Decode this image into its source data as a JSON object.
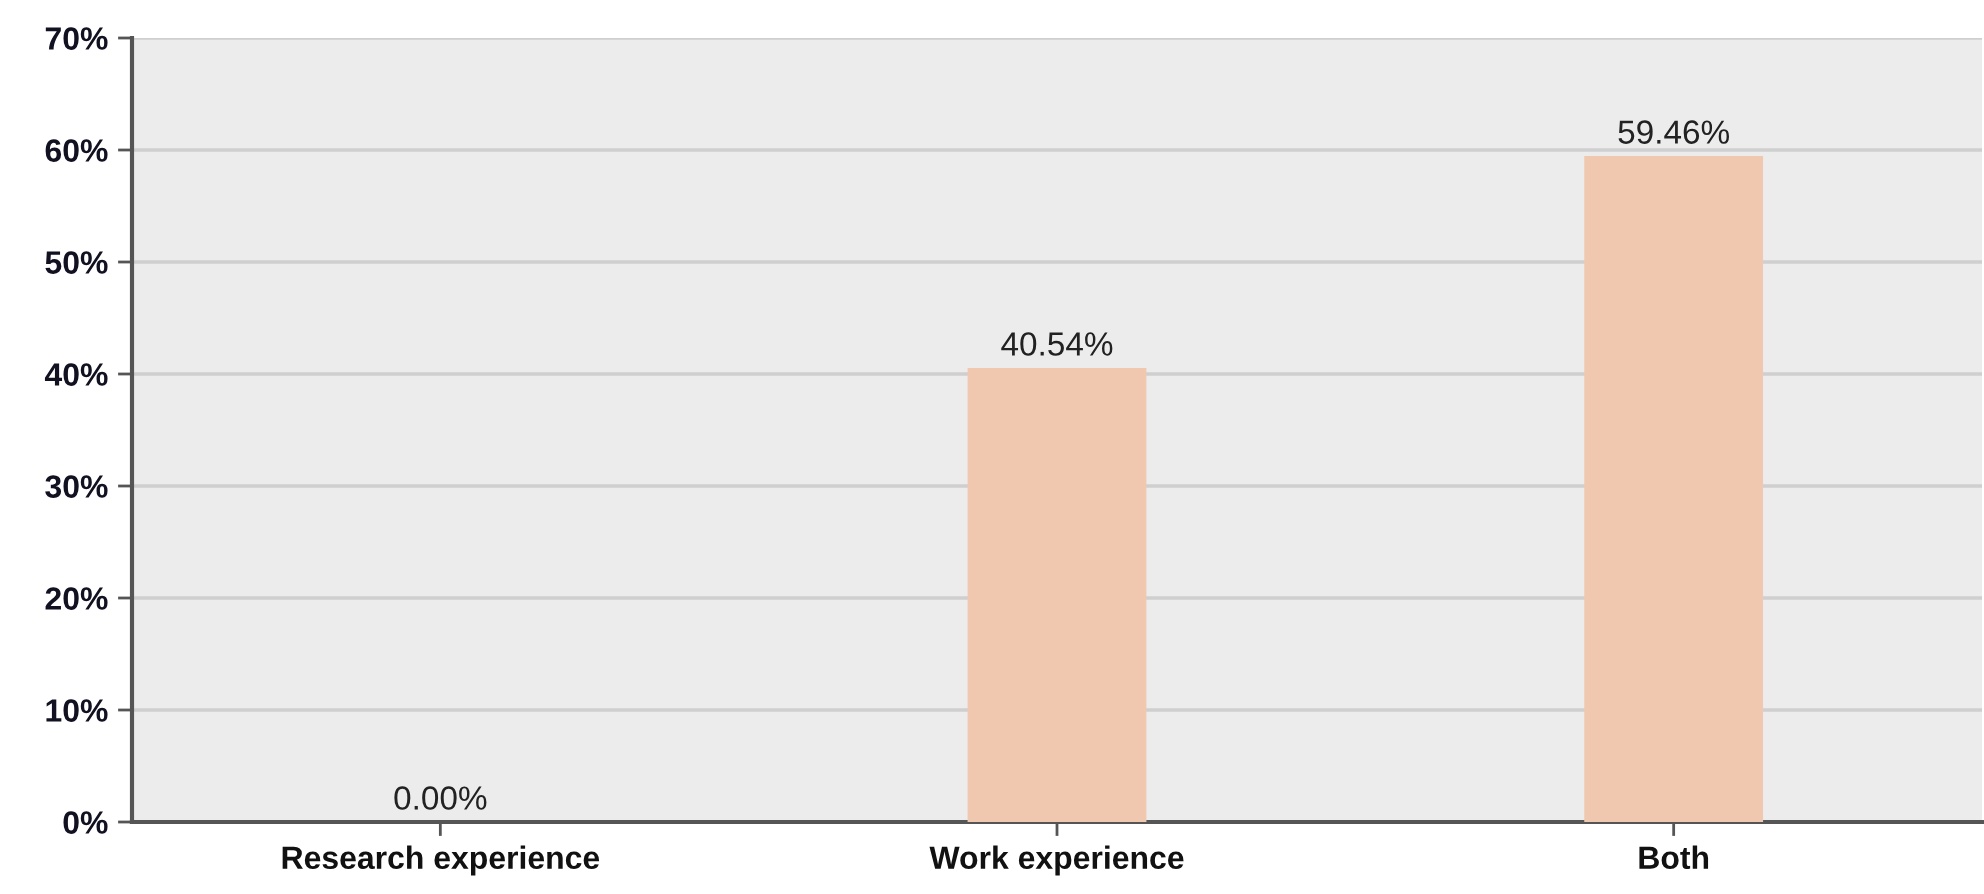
{
  "chart_data": {
    "type": "bar",
    "categories": [
      "Research experience",
      "Work experience",
      "Both"
    ],
    "values": [
      0,
      40.54,
      59.46
    ],
    "value_labels": [
      "0.00%",
      "40.54%",
      "59.46%"
    ],
    "color": "#f0c8b0",
    "ylim": [
      0,
      70
    ],
    "yticks": [
      {
        "value": 0,
        "label": "0%"
      },
      {
        "value": 10,
        "label": "10%"
      },
      {
        "value": 20,
        "label": "20%"
      },
      {
        "value": 30,
        "label": "30%"
      },
      {
        "value": 40,
        "label": "40%"
      },
      {
        "value": 50,
        "label": "50%"
      },
      {
        "value": 60,
        "label": "60%"
      },
      {
        "value": 70,
        "label": "70%"
      }
    ],
    "grid": "y",
    "legend": false
  }
}
